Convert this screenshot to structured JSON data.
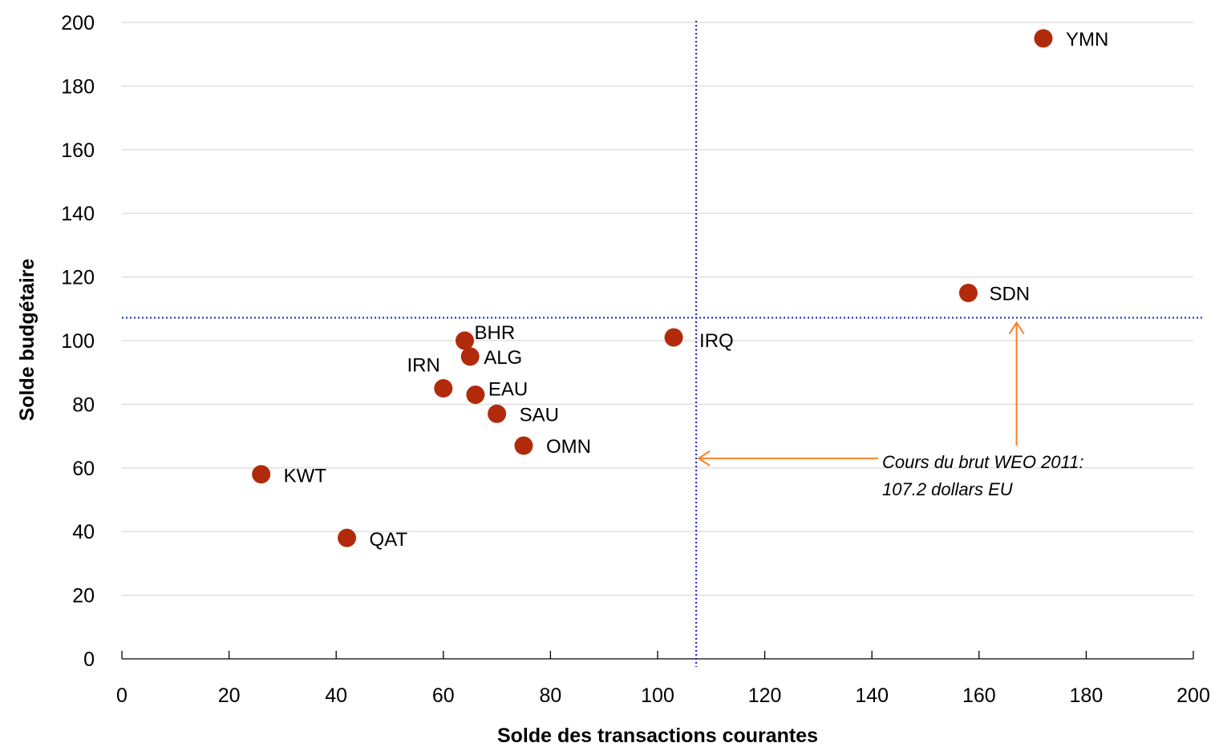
{
  "chart_data": {
    "type": "scatter",
    "title": "",
    "xlabel": "Solde des transactions courantes",
    "ylabel": "Solde budgétaire",
    "xlim": [
      0,
      200
    ],
    "ylim": [
      0,
      200
    ],
    "xticks": [
      0,
      20,
      40,
      60,
      80,
      100,
      120,
      140,
      160,
      180,
      200
    ],
    "yticks": [
      0,
      20,
      40,
      60,
      80,
      100,
      120,
      140,
      160,
      180,
      200
    ],
    "grid": "horizontal",
    "point_color": "#b22a0c",
    "points": [
      {
        "label": "YMN",
        "x": 172,
        "y": 195
      },
      {
        "label": "SDN",
        "x": 158,
        "y": 115
      },
      {
        "label": "IRQ",
        "x": 103,
        "y": 101
      },
      {
        "label": "BHR",
        "x": 64,
        "y": 100
      },
      {
        "label": "ALG",
        "x": 65,
        "y": 95
      },
      {
        "label": "IRN",
        "x": 60,
        "y": 85
      },
      {
        "label": "EAU",
        "x": 66,
        "y": 83
      },
      {
        "label": "SAU",
        "x": 70,
        "y": 77
      },
      {
        "label": "OMN",
        "x": 75,
        "y": 67
      },
      {
        "label": "KWT",
        "x": 26,
        "y": 58
      },
      {
        "label": "QAT",
        "x": 42,
        "y": 38
      }
    ],
    "reference_lines": {
      "x": 107.2,
      "y": 107.2,
      "color": "#1f2ad6",
      "style": "dotted"
    },
    "annotation": {
      "line1": "Cours du brut WEO 2011:",
      "line2": "107.2 dollars EU",
      "arrow_color": "#ff7f27"
    }
  }
}
